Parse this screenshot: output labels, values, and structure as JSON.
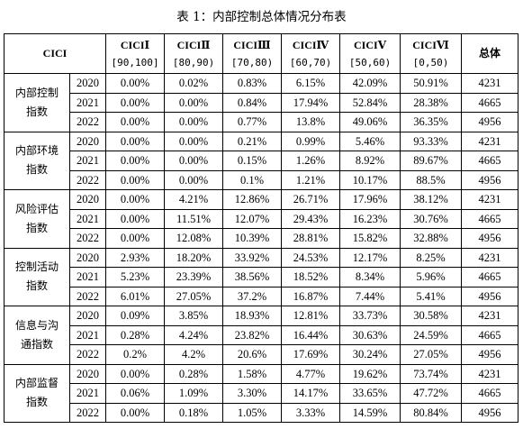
{
  "caption": "表 1：内部控制总体情况分布表",
  "header": {
    "corner": "CICI",
    "columns": [
      {
        "label": "CICIⅠ",
        "range": "[90,100]"
      },
      {
        "label": "CICIⅡ",
        "range": "[80,90)"
      },
      {
        "label": "CICIⅢ",
        "range": "[70,80)"
      },
      {
        "label": "CICIⅣ",
        "range": "[60,70)"
      },
      {
        "label": "CICIⅤ",
        "range": "[50,60)"
      },
      {
        "label": "CICIⅥ",
        "range": "[0,50)"
      }
    ],
    "total": "总体"
  },
  "groups": [
    {
      "name": "内部控制指数",
      "rows": [
        {
          "year": "2020",
          "cells": [
            "0.00%",
            "0.02%",
            "0.83%",
            "6.15%",
            "42.09%",
            "50.91%",
            "4231"
          ]
        },
        {
          "year": "2021",
          "cells": [
            "0.00%",
            "0.00%",
            "0.84%",
            "17.94%",
            "52.84%",
            "28.38%",
            "4665"
          ]
        },
        {
          "year": "2022",
          "cells": [
            "0.00%",
            "0.00%",
            "0.77%",
            "13.8%",
            "49.06%",
            "36.35%",
            "4956"
          ]
        }
      ]
    },
    {
      "name": "内部环境指数",
      "rows": [
        {
          "year": "2020",
          "cells": [
            "0.00%",
            "0.00%",
            "0.21%",
            "0.99%",
            "5.46%",
            "93.33%",
            "4231"
          ]
        },
        {
          "year": "2021",
          "cells": [
            "0.00%",
            "0.00%",
            "0.15%",
            "1.26%",
            "8.92%",
            "89.67%",
            "4665"
          ]
        },
        {
          "year": "2022",
          "cells": [
            "0.00%",
            "0.00%",
            "0.1%",
            "1.21%",
            "10.17%",
            "88.5%",
            "4956"
          ]
        }
      ]
    },
    {
      "name": "风险评估指数",
      "rows": [
        {
          "year": "2020",
          "cells": [
            "0.00%",
            "4.21%",
            "12.86%",
            "26.71%",
            "17.96%",
            "38.12%",
            "4231"
          ]
        },
        {
          "year": "2021",
          "cells": [
            "0.00%",
            "11.51%",
            "12.07%",
            "29.43%",
            "16.23%",
            "30.76%",
            "4665"
          ]
        },
        {
          "year": "2022",
          "cells": [
            "0.00%",
            "12.08%",
            "10.39%",
            "28.81%",
            "15.82%",
            "32.88%",
            "4956"
          ]
        }
      ]
    },
    {
      "name": "控制活动指数",
      "rows": [
        {
          "year": "2020",
          "cells": [
            "2.93%",
            "18.20%",
            "33.92%",
            "24.53%",
            "12.17%",
            "8.25%",
            "4231"
          ]
        },
        {
          "year": "2021",
          "cells": [
            "5.23%",
            "23.39%",
            "38.56%",
            "18.52%",
            "8.34%",
            "5.96%",
            "4665"
          ]
        },
        {
          "year": "2022",
          "cells": [
            "6.01%",
            "27.05%",
            "37.2%",
            "16.87%",
            "7.44%",
            "5.41%",
            "4956"
          ]
        }
      ]
    },
    {
      "name": "信息与沟通指数",
      "rows": [
        {
          "year": "2020",
          "cells": [
            "0.09%",
            "3.85%",
            "18.93%",
            "12.81%",
            "33.73%",
            "30.58%",
            "4231"
          ]
        },
        {
          "year": "2021",
          "cells": [
            "0.28%",
            "4.24%",
            "23.82%",
            "16.44%",
            "30.63%",
            "24.59%",
            "4665"
          ]
        },
        {
          "year": "2022",
          "cells": [
            "0.2%",
            "4.2%",
            "20.6%",
            "17.69%",
            "30.24%",
            "27.05%",
            "4956"
          ]
        }
      ]
    },
    {
      "name": "内部监督指数",
      "rows": [
        {
          "year": "2020",
          "cells": [
            "0.00%",
            "0.28%",
            "1.58%",
            "4.77%",
            "19.62%",
            "73.74%",
            "4231"
          ]
        },
        {
          "year": "2021",
          "cells": [
            "0.06%",
            "1.09%",
            "3.30%",
            "14.17%",
            "33.65%",
            "47.72%",
            "4665"
          ]
        },
        {
          "year": "2022",
          "cells": [
            "0.00%",
            "0.18%",
            "1.05%",
            "3.33%",
            "14.59%",
            "80.84%",
            "4956"
          ]
        }
      ]
    }
  ]
}
